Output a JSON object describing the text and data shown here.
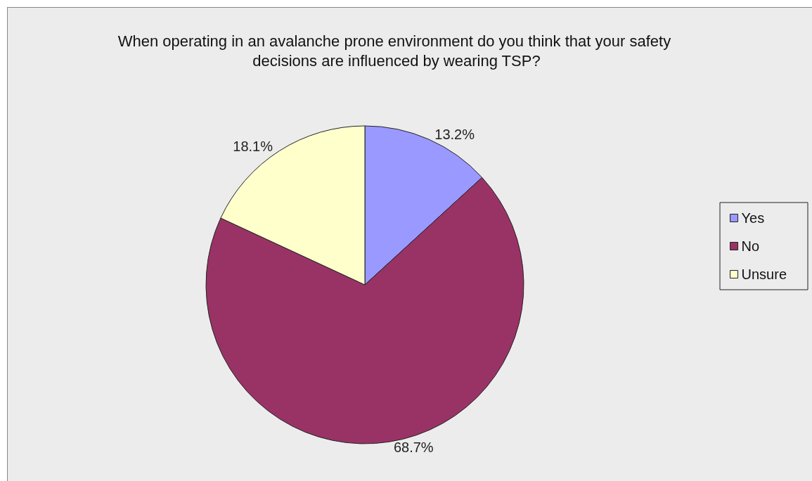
{
  "chart_data": {
    "type": "pie",
    "title": "When operating in an avalanche prone environment do you think that your safety decisions are influenced by wearing TSP?",
    "categories": [
      "Yes",
      "No",
      "Unsure"
    ],
    "values": [
      13.2,
      68.7,
      18.1
    ],
    "value_labels": [
      "13.2%",
      "68.7%",
      "18.1%"
    ],
    "colors": [
      "#9999ff",
      "#993366",
      "#ffffcc"
    ],
    "legend": "right"
  }
}
